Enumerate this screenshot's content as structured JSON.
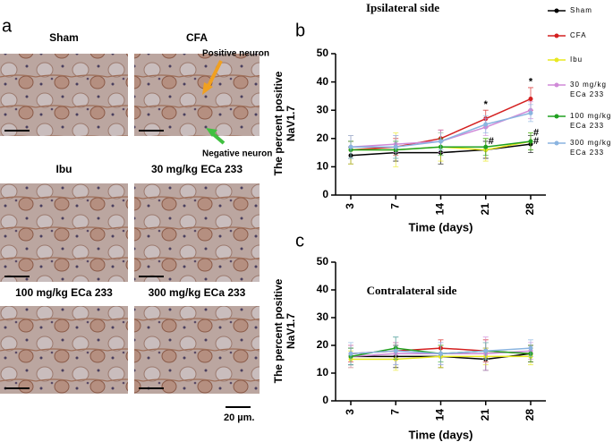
{
  "micrographs": {
    "panel": "a",
    "images": [
      "Sham",
      "CFA",
      "Ibu",
      "30 mg/kg ECa 233",
      "100 mg/kg ECa 233",
      "300 mg/kg ECa 233"
    ],
    "positive_label": "Positive neuron",
    "negative_label": "Negative neuron",
    "scale_bar": "20 µm."
  },
  "chart_data": [
    {
      "type": "line",
      "panel": "b",
      "title": "Ipsilateral side",
      "xlabel": "Time (days)",
      "ylabel": "The percent positive NaV1.7",
      "categories": [
        "3",
        "7",
        "14",
        "21",
        "28"
      ],
      "ylim": [
        0,
        50
      ],
      "yticks": [
        0,
        10,
        20,
        30,
        40,
        50
      ],
      "legend": "right",
      "series": [
        {
          "name": "Sham",
          "color": "#000000",
          "values": [
            14,
            15,
            15,
            16,
            18
          ],
          "errors": [
            3,
            3,
            4,
            3,
            3
          ]
        },
        {
          "name": "CFA",
          "color": "#d42020",
          "values": [
            16,
            17,
            20,
            27,
            34
          ],
          "errors": [
            3,
            3,
            3,
            3,
            4
          ]
        },
        {
          "name": "Ibu",
          "color": "#e8e820",
          "values": [
            16,
            16,
            17,
            16,
            19
          ],
          "errors": [
            5,
            6,
            5,
            4,
            3
          ]
        },
        {
          "name": "30 mg/kg ECa 233",
          "color": "#d08ad8",
          "values": [
            17,
            18,
            19,
            24,
            30
          ],
          "errors": [
            4,
            3,
            4,
            3,
            3
          ]
        },
        {
          "name": "100 mg/kg ECa 233",
          "color": "#20a020",
          "values": [
            16,
            16,
            17,
            17,
            19
          ],
          "errors": [
            3,
            3,
            3,
            3,
            3
          ]
        },
        {
          "name": "300 mg/kg ECa 233",
          "color": "#8ab4e0",
          "values": [
            17,
            17,
            19,
            25,
            29
          ],
          "errors": [
            4,
            4,
            3,
            3,
            3
          ]
        }
      ],
      "annotations": [
        {
          "text": "*",
          "x": "21",
          "y": 32
        },
        {
          "text": "*",
          "x": "28",
          "y": 40
        },
        {
          "text": "#",
          "x": "21",
          "y": 19
        },
        {
          "text": "#",
          "x": "28",
          "y": 22
        },
        {
          "text": "#",
          "x": "28",
          "y": 19
        }
      ]
    },
    {
      "type": "line",
      "panel": "c",
      "title": "Contralateral side",
      "xlabel": "Time (days)",
      "ylabel": "The percent positive NaV1.7",
      "categories": [
        "3",
        "7",
        "14",
        "21",
        "28"
      ],
      "ylim": [
        0,
        50
      ],
      "yticks": [
        0,
        10,
        20,
        30,
        40,
        50
      ],
      "series": [
        {
          "name": "Sham",
          "color": "#000000",
          "values": [
            16,
            16,
            16,
            15,
            17
          ],
          "errors": [
            3,
            4,
            4,
            4,
            3
          ]
        },
        {
          "name": "CFA",
          "color": "#d42020",
          "values": [
            17,
            18,
            19,
            18,
            17
          ],
          "errors": [
            3,
            3,
            3,
            4,
            3
          ]
        },
        {
          "name": "Ibu",
          "color": "#e8e820",
          "values": [
            15,
            15,
            16,
            16,
            16
          ],
          "errors": [
            3,
            4,
            4,
            3,
            3
          ]
        },
        {
          "name": "30 mg/kg ECa 233",
          "color": "#d08ad8",
          "values": [
            16,
            17,
            17,
            17,
            18
          ],
          "errors": [
            4,
            4,
            4,
            6,
            3
          ]
        },
        {
          "name": "100 mg/kg ECa 233",
          "color": "#20a020",
          "values": [
            16,
            19,
            17,
            18,
            17
          ],
          "errors": [
            3,
            4,
            3,
            3,
            3
          ]
        },
        {
          "name": "300 mg/kg ECa 233",
          "color": "#8ab4e0",
          "values": [
            17,
            18,
            17,
            18,
            19
          ],
          "errors": [
            4,
            5,
            4,
            3,
            3
          ]
        }
      ]
    }
  ]
}
